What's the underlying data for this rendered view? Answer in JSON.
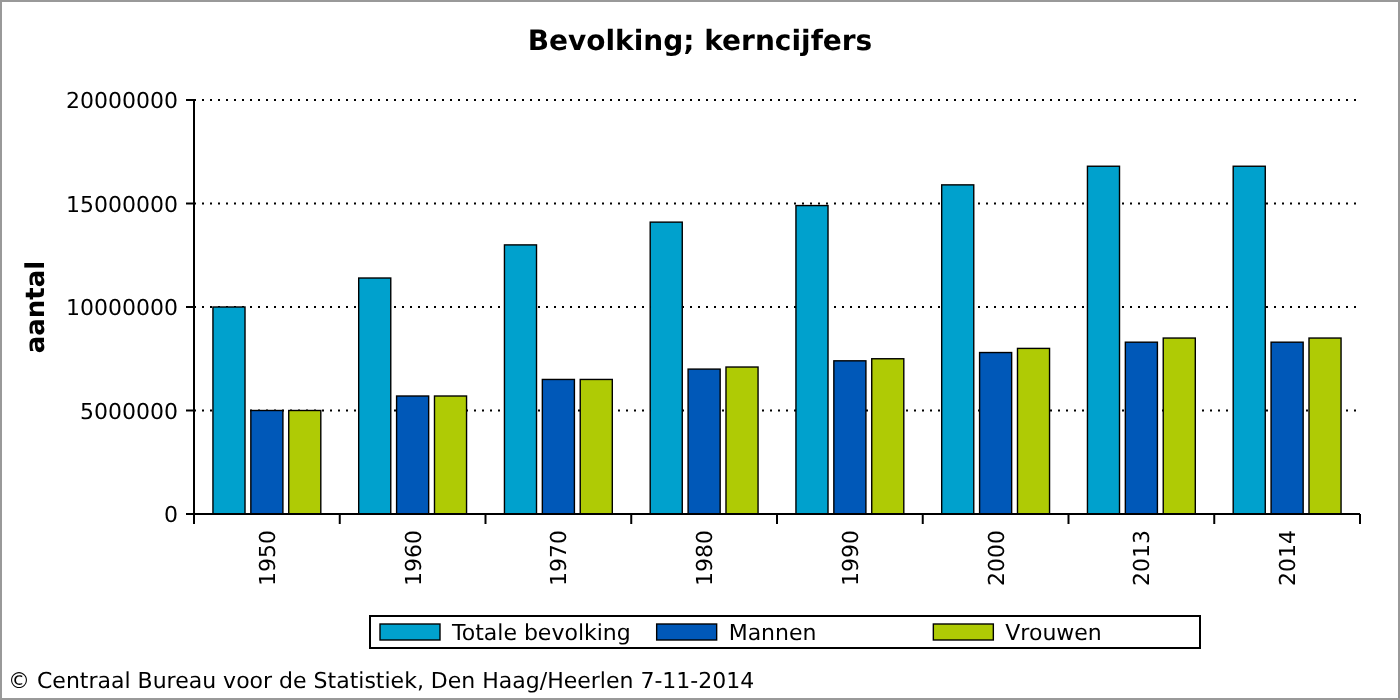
{
  "chart_data": {
    "type": "bar",
    "title": "Bevolking; kerncijfers",
    "ylabel": "aantal",
    "categories": [
      "1950",
      "1960",
      "1970",
      "1980",
      "1990",
      "2000",
      "2013",
      "2014"
    ],
    "series": [
      {
        "name": "Totale bevolking",
        "color": "#00a1cd",
        "values": [
          10000000,
          11400000,
          13000000,
          14100000,
          14900000,
          15900000,
          16800000,
          16800000
        ]
      },
      {
        "name": "Mannen",
        "color": "#0058b8",
        "values": [
          5000000,
          5700000,
          6500000,
          7000000,
          7400000,
          7800000,
          8300000,
          8300000
        ]
      },
      {
        "name": "Vrouwen",
        "color": "#afcb05",
        "values": [
          5000000,
          5700000,
          6500000,
          7100000,
          7500000,
          8000000,
          8500000,
          8500000
        ]
      }
    ],
    "ylim": [
      0,
      20000000
    ],
    "yticks": [
      0,
      5000000,
      10000000,
      15000000,
      20000000
    ],
    "grid": "y",
    "legend": "bottom",
    "annotations": [
      "© Centraal Bureau voor de Statistiek, Den Haag/Heerlen 7-11-2014"
    ]
  }
}
